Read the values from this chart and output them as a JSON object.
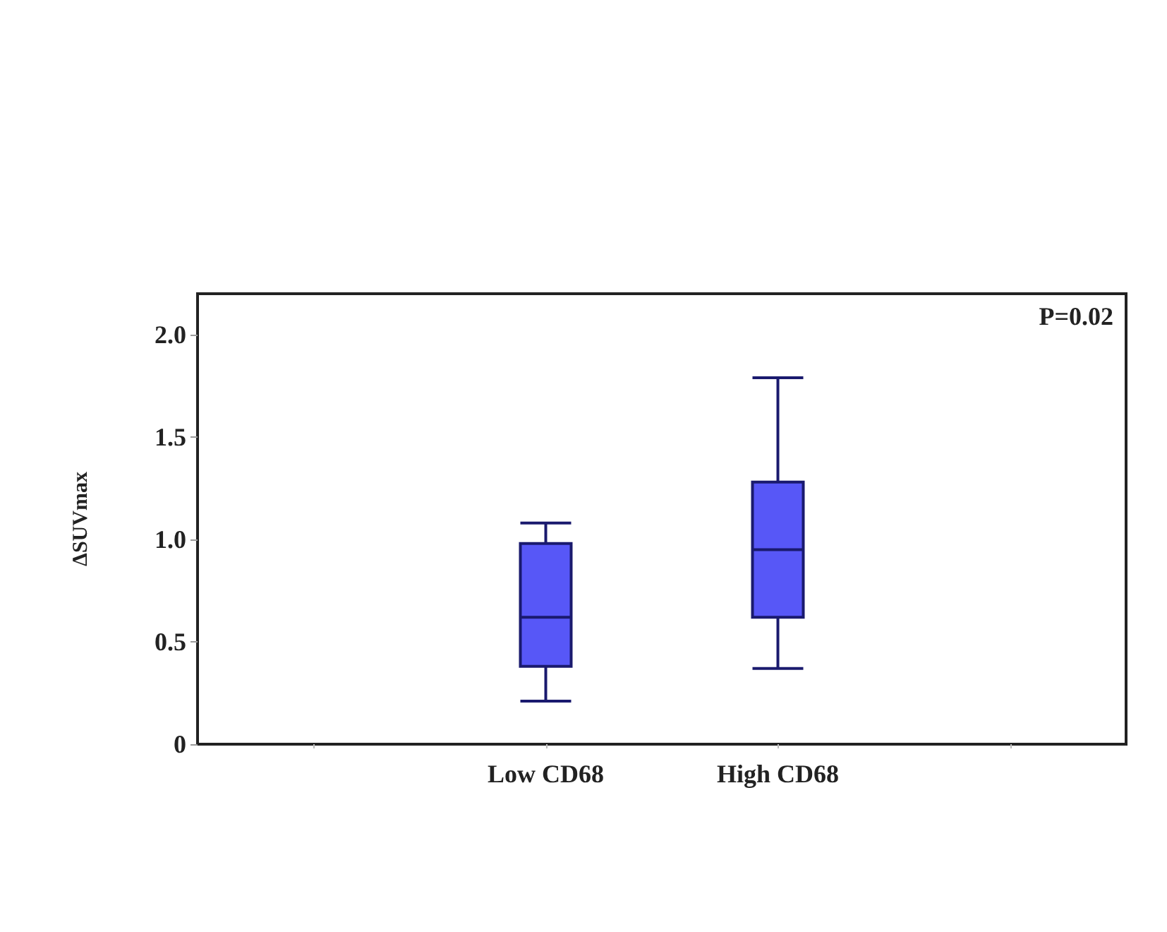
{
  "chart_data": {
    "type": "box",
    "ylabel": "ΔSUVmax",
    "categories": [
      null,
      "Low CD68",
      "High CD68",
      null
    ],
    "series": [
      {
        "color": "#5757f7",
        "boxes": [
          null,
          {
            "low": 0.21,
            "q1": 0.38,
            "median": 0.62,
            "q3": 0.98,
            "high": 1.08
          },
          {
            "low": 0.37,
            "q1": 0.62,
            "median": 0.95,
            "q3": 1.28,
            "high": 1.79
          },
          null
        ]
      }
    ],
    "ylim": [
      0,
      2.2
    ],
    "yticks": [
      {
        "value": 0,
        "label": "0"
      },
      {
        "value": 0.5,
        "label": "0.5"
      },
      {
        "value": 1,
        "label": "1.0"
      },
      {
        "value": 1.5,
        "label": "1.5"
      },
      {
        "value": 2,
        "label": "2.0"
      }
    ],
    "annotations": [
      "P=0.02"
    ],
    "grid": false
  }
}
